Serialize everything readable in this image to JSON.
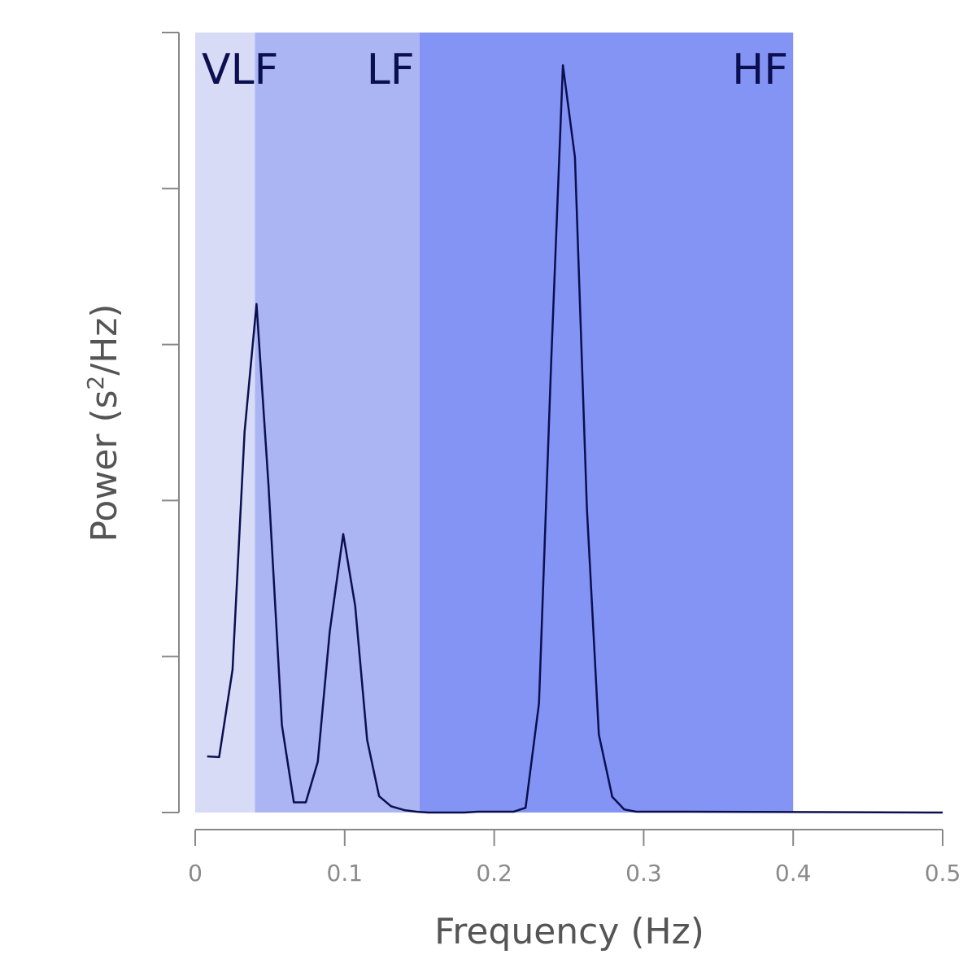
{
  "chart_data": {
    "type": "line",
    "xlabel": "Frequency (Hz)",
    "ylabel_main": "Power (s",
    "ylabel_sup": "2",
    "ylabel_tail": "/Hz)",
    "xlim": [
      0,
      0.5
    ],
    "ylim": [
      0,
      1
    ],
    "y_ticks_labeled": false,
    "x_ticks": [
      0,
      0.1,
      0.2,
      0.3,
      0.4,
      0.5
    ],
    "x_tick_labels": [
      "0",
      "0.1",
      "0.2",
      "0.3",
      "0.4",
      "0.5"
    ],
    "bands": [
      {
        "label": "VLF",
        "from": 0,
        "to": 0.04,
        "color": "#d8dbf5",
        "label_align": "left"
      },
      {
        "label": "LF",
        "from": 0.04,
        "to": 0.15,
        "color": "#abb5f3",
        "label_align": "right"
      },
      {
        "label": "HF",
        "from": 0.15,
        "to": 0.4,
        "color": "#8494f4",
        "label_align": "right"
      }
    ],
    "line_color": "#0b0f4f",
    "series": [
      {
        "x": [
          0.008,
          0.016,
          0.025,
          0.033,
          0.041,
          0.049,
          0.058,
          0.066,
          0.074,
          0.082,
          0.09,
          0.099,
          0.107,
          0.115,
          0.123,
          0.131,
          0.14,
          0.148,
          0.156,
          0.164,
          0.172,
          0.18,
          0.189,
          0.197,
          0.205,
          0.213,
          0.221,
          0.23,
          0.238,
          0.246,
          0.254,
          0.262,
          0.27,
          0.279,
          0.287,
          0.295,
          0.303,
          0.311,
          0.32,
          0.328,
          0.5
        ],
        "y": [
          0.072,
          0.071,
          0.183,
          0.488,
          0.652,
          0.42,
          0.112,
          0.013,
          0.013,
          0.065,
          0.232,
          0.357,
          0.265,
          0.093,
          0.021,
          0.008,
          0.003,
          0.001,
          0.0,
          0.0,
          0.0,
          0.0,
          0.001,
          0.001,
          0.001,
          0.001,
          0.006,
          0.14,
          0.57,
          0.958,
          0.84,
          0.39,
          0.1,
          0.02,
          0.004,
          0.001,
          0.001,
          0.001,
          0.001,
          0.001,
          0.0
        ]
      }
    ]
  }
}
